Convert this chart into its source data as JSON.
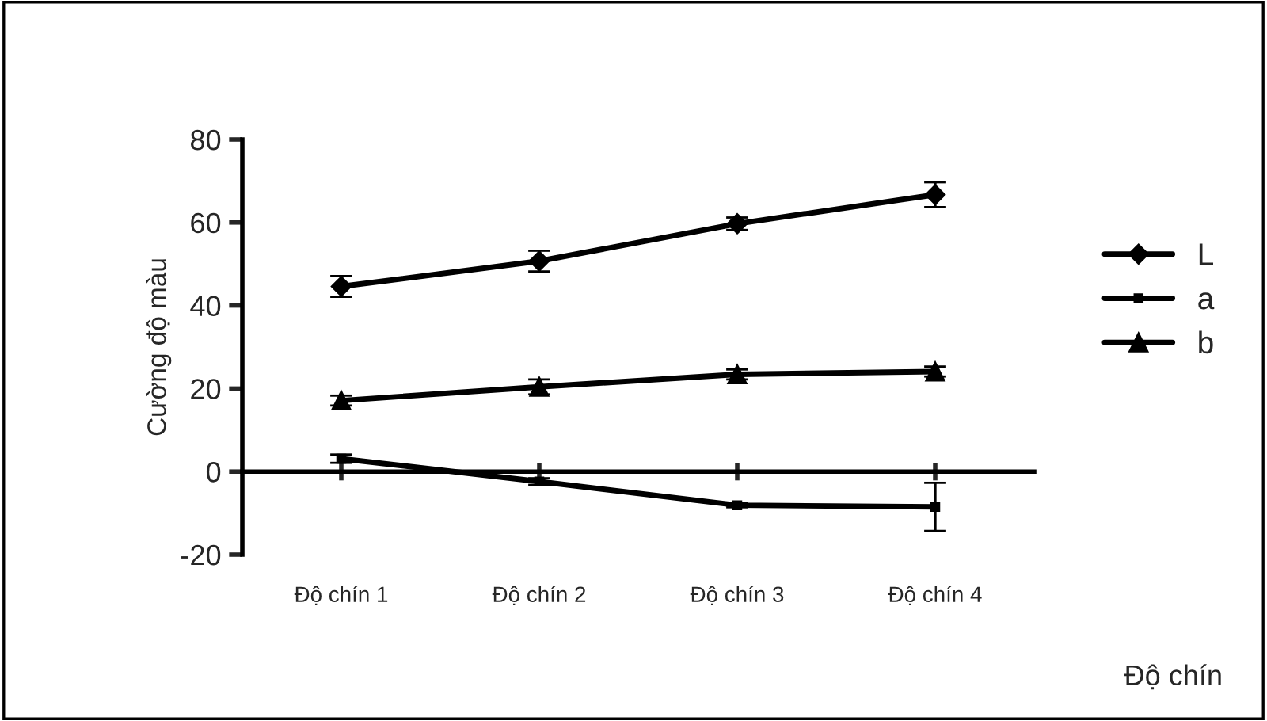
{
  "chart_data": {
    "type": "line",
    "xlabel": "Độ chín",
    "ylabel": "Cường độ màu",
    "categories": [
      "Độ chín 1",
      "Độ chín 2",
      "Độ chín 3",
      "Độ chín 4"
    ],
    "series": [
      {
        "name": "L",
        "color": "#000000",
        "marker": "diamond",
        "values": [
          44.6,
          50.7,
          59.7,
          66.7
        ],
        "errors": [
          2.5,
          2.5,
          1.5,
          3
        ]
      },
      {
        "name": "a",
        "color": "#000000",
        "marker": "square",
        "values": [
          3.1,
          -2.4,
          -8.1,
          -8.5
        ],
        "errors": [
          1,
          0.8,
          0.5,
          5.8
        ]
      },
      {
        "name": "b",
        "color": "#000000",
        "marker": "triangle",
        "values": [
          17.1,
          20.4,
          23.4,
          24.1
        ],
        "errors": [
          1.2,
          1.8,
          1.2,
          1.2
        ]
      }
    ],
    "ylim": [
      -20,
      80
    ],
    "yticks": [
      -20,
      0,
      20,
      40,
      60,
      80
    ],
    "legend": "right",
    "line_style": "solid"
  }
}
